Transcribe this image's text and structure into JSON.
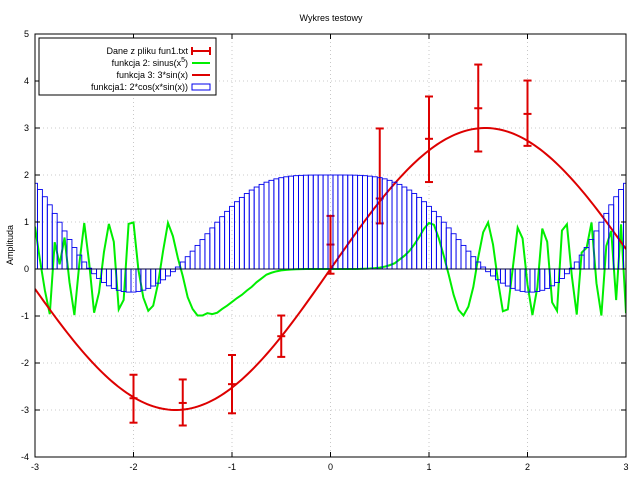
{
  "chart_data": {
    "type": "line",
    "title": "Wykres testowy",
    "xlabel": "",
    "ylabel": "Amplituda",
    "xlim": [
      -3,
      3
    ],
    "ylim": [
      -4,
      5
    ],
    "xticks": [
      -3,
      -2,
      -1,
      0,
      1,
      2,
      3
    ],
    "yticks": [
      -4,
      -3,
      -2,
      -1,
      0,
      1,
      2,
      3,
      4,
      5
    ],
    "grid": true,
    "legend_position": "top-left",
    "series": [
      {
        "name": "Dane z pliku fun1.txt",
        "kind": "errorbar",
        "color": "#dd0000",
        "points": [
          {
            "x": -2.0,
            "y": -2.75,
            "ylow": -3.27,
            "yhigh": -2.25
          },
          {
            "x": -1.5,
            "y": -2.85,
            "ylow": -3.33,
            "yhigh": -2.35
          },
          {
            "x": -1.0,
            "y": -2.45,
            "ylow": -3.07,
            "yhigh": -1.83
          },
          {
            "x": -0.5,
            "y": -1.43,
            "ylow": -1.87,
            "yhigh": -0.99
          },
          {
            "x": 0.0,
            "y": 0.52,
            "ylow": -0.1,
            "yhigh": 1.13
          },
          {
            "x": 0.5,
            "y": 1.5,
            "ylow": 0.97,
            "yhigh": 2.99
          },
          {
            "x": 1.0,
            "y": 2.77,
            "ylow": 1.85,
            "yhigh": 3.67
          },
          {
            "x": 1.5,
            "y": 3.42,
            "ylow": 2.5,
            "yhigh": 4.35
          },
          {
            "x": 2.0,
            "y": 3.3,
            "ylow": 2.62,
            "yhigh": 4.01
          }
        ]
      },
      {
        "name": "funkcja 2: sinus(x",
        "name_superscript": "5",
        "name_suffix": ")",
        "kind": "line",
        "color": "#00ee00",
        "x": [
          -3.0,
          -2.95,
          -2.9,
          -2.85,
          -2.8,
          -2.75,
          -2.7,
          -2.65,
          -2.6,
          -2.55,
          -2.5,
          -2.45,
          -2.4,
          -2.35,
          -2.3,
          -2.25,
          -2.2,
          -2.15,
          -2.1,
          -2.05,
          -2.0,
          -1.95,
          -1.9,
          -1.85,
          -1.8,
          -1.75,
          -1.7,
          -1.65,
          -1.6,
          -1.55,
          -1.5,
          -1.45,
          -1.4,
          -1.35,
          -1.3,
          -1.25,
          -1.2,
          -1.15,
          -1.1,
          -1.05,
          -1.0,
          -0.95,
          -0.9,
          -0.85,
          -0.8,
          -0.75,
          -0.7,
          -0.65,
          -0.6,
          -0.55,
          -0.5,
          -0.45,
          -0.4,
          -0.35,
          -0.3,
          -0.25,
          -0.2,
          -0.15,
          -0.1,
          -0.05,
          0.0,
          0.05,
          0.1,
          0.15,
          0.2,
          0.25,
          0.3,
          0.35,
          0.4,
          0.45,
          0.5,
          0.55,
          0.6,
          0.65,
          0.7,
          0.75,
          0.8,
          0.85,
          0.9,
          0.95,
          1.0,
          1.05,
          1.1,
          1.15,
          1.2,
          1.25,
          1.3,
          1.35,
          1.4,
          1.45,
          1.5,
          1.55,
          1.6,
          1.65,
          1.7,
          1.75,
          1.8,
          1.85,
          1.9,
          1.95,
          2.0,
          2.05,
          2.1,
          2.15,
          2.2,
          2.25,
          2.3,
          2.35,
          2.4,
          2.45,
          2.5,
          2.55,
          2.6,
          2.65,
          2.7,
          2.75,
          2.8,
          2.85,
          2.9,
          2.95,
          3.0
        ],
        "y": [
          0.9,
          0.2,
          -0.45,
          -0.96,
          0.57,
          0.1,
          0.67,
          -0.28,
          -0.98,
          0.11,
          0.98,
          0.13,
          -0.93,
          -0.5,
          0.36,
          0.96,
          0.58,
          -0.86,
          -0.66,
          0.96,
          0.99,
          -0.02,
          -0.61,
          -0.89,
          -0.78,
          -0.3,
          0.38,
          0.98,
          0.7,
          0.24,
          -0.15,
          -0.6,
          -0.85,
          -0.99,
          -0.99,
          -0.94,
          -0.96,
          -0.93,
          -0.85,
          -0.78,
          -0.7,
          -0.62,
          -0.55,
          -0.46,
          -0.38,
          -0.28,
          -0.2,
          -0.12,
          -0.08,
          -0.05,
          -0.03,
          -0.018,
          -0.01,
          -0.005,
          -0.002,
          -0.001,
          0.0,
          0.0,
          0.0,
          0.0,
          0.0,
          0.0,
          0.0,
          0.0,
          0.0,
          0.001,
          0.002,
          0.005,
          0.01,
          0.018,
          0.03,
          0.05,
          0.08,
          0.12,
          0.2,
          0.28,
          0.38,
          0.52,
          0.68,
          0.86,
          0.98,
          0.94,
          0.65,
          0.28,
          -0.12,
          -0.55,
          -0.87,
          -0.99,
          -0.8,
          -0.38,
          0.25,
          0.78,
          0.99,
          0.52,
          -0.25,
          -0.9,
          -0.86,
          0.01,
          0.88,
          0.65,
          -0.33,
          -0.98,
          -0.39,
          0.86,
          0.58,
          -0.71,
          -0.89,
          0.82,
          0.95,
          -0.15,
          -0.97,
          0.35,
          0.45,
          0.99,
          -0.3,
          -0.99,
          0.49,
          0.81,
          -0.66,
          0.95,
          -0.94
        ]
      },
      {
        "name": "funkcja 3: 3*sin(x)",
        "kind": "line",
        "color": "#dd0000",
        "formula": "3*sin(x)",
        "samples": 200
      },
      {
        "name": "funkcja1: 2*cos(x*sin(x))",
        "kind": "impulse-steps",
        "color": "#0000ee",
        "formula": "2*cos(x*sin(x))",
        "x_start": -3.0,
        "x_end": 3.0,
        "step": 0.05
      }
    ]
  }
}
